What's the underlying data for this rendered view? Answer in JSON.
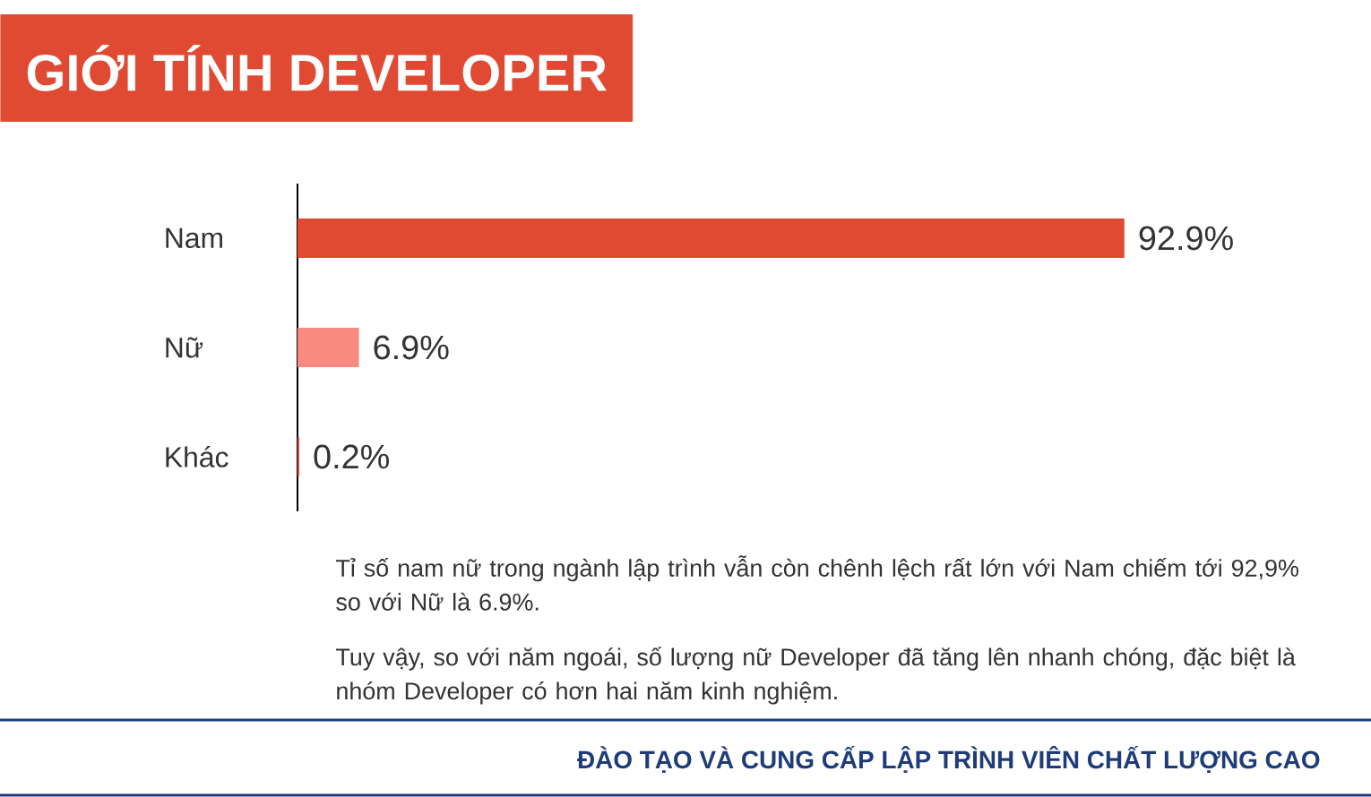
{
  "chart_data": {
    "type": "bar",
    "orientation": "horizontal",
    "title": "GIỚI TÍNH DEVELOPER",
    "categories": [
      "Nam",
      "Nữ",
      "Khác"
    ],
    "values": [
      92.9,
      6.9,
      0.2
    ],
    "colors": [
      "#e04a33",
      "#f98a80",
      "#e04a33"
    ],
    "value_labels": [
      "92.9%",
      "6.9%",
      "0.2%"
    ],
    "annotations": [
      "Tỉ số nam nữ trong ngành lập trình vẫn còn chênh lệch rất lớn với Nam chiếm tới 92,9% so với Nữ là 6.9%.",
      "Tuy vậy, so với năm ngoái, số lượng nữ Developer đã tăng lên nhanh chóng, đặc biệt là nhóm Developer có hơn hai năm kinh nghiệm.",
      "ĐÀO TẠO VÀ CUNG CẤP LẬP TRÌNH VIÊN CHẤT LƯỢNG CAO"
    ]
  }
}
